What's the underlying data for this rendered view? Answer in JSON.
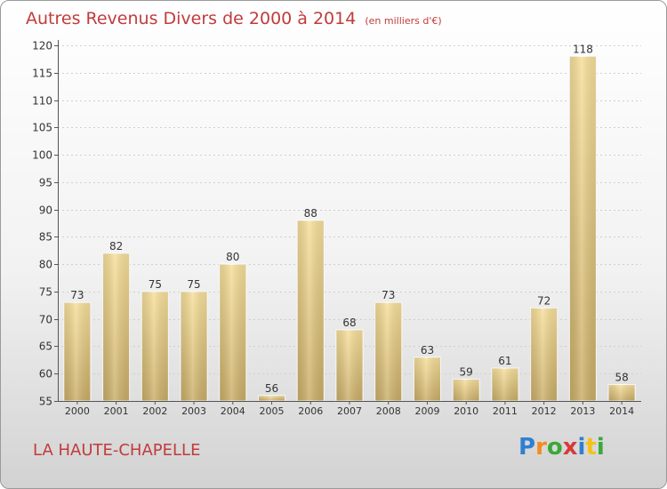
{
  "header": {
    "title": "Autres Revenus Divers de 2000 à 2014",
    "unit": "(en milliers d'€)"
  },
  "footer": {
    "city": "LA HAUTE-CHAPELLE",
    "logo": {
      "letters": [
        "P",
        "r",
        "o",
        "x",
        "i",
        "t",
        "i"
      ],
      "colors": [
        "#2f7fd1",
        "#f28c1b",
        "#3aa83a",
        "#d93a3a",
        "#2f7fd1",
        "#f2c21b",
        "#3aa83a"
      ]
    }
  },
  "chart_data": {
    "type": "bar",
    "title": "Autres Revenus Divers de 2000 à 2014",
    "subtitle": "(en milliers d'€)",
    "categories": [
      "2000",
      "2001",
      "2002",
      "2003",
      "2004",
      "2005",
      "2006",
      "2007",
      "2008",
      "2009",
      "2010",
      "2011",
      "2012",
      "2013",
      "2014"
    ],
    "values": [
      73,
      82,
      75,
      75,
      80,
      56,
      88,
      68,
      73,
      63,
      59,
      61,
      72,
      118,
      58
    ],
    "ylim": [
      55,
      120
    ],
    "yticks": [
      55,
      60,
      65,
      70,
      75,
      80,
      85,
      90,
      95,
      100,
      105,
      110,
      115,
      120
    ],
    "grid": true,
    "bar_color": "#e8cc80"
  }
}
